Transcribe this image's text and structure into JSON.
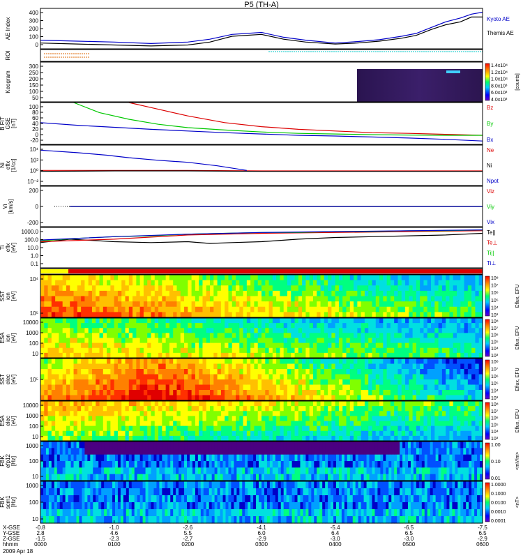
{
  "chart_data": {
    "type": "line",
    "title": "P5 (TH-A)",
    "date_label": "2009 Apr 18",
    "x_ticks": [
      {
        "x": "-0.8",
        "y": "2.8",
        "z": "-1.5",
        "t": "0000"
      },
      {
        "x": "-1.0",
        "y": "4.6",
        "z": "-2.3",
        "t": "0100"
      },
      {
        "x": "-2.6",
        "y": "5.5",
        "z": "-2.7",
        "t": "0200"
      },
      {
        "x": "-4.1",
        "y": "6.0",
        "z": "-2.9",
        "t": "0300"
      },
      {
        "x": "-5.4",
        "y": "6.4",
        "z": "-3.0",
        "t": "0400"
      },
      {
        "x": "-6.5",
        "y": "6.5",
        "z": "-3.0",
        "t": "0500"
      },
      {
        "x": "-7.5",
        "y": "6.5",
        "z": "-2.9",
        "t": "0600"
      }
    ],
    "x_row_labels": [
      "X-GSE",
      "Y-GSE",
      "Z-GSE",
      "hhmm"
    ],
    "panels": [
      {
        "kind": "line",
        "ylabel": [
          "AE Index"
        ],
        "yticks": [
          "0",
          "100",
          "200",
          "300",
          "400"
        ],
        "ylim": [
          0,
          420
        ],
        "series": [
          {
            "name": "Kyoto AE",
            "color": "#0000c8",
            "x": [
              0,
              0.5,
              1,
              1.5,
              2,
              2.3,
              2.6,
              3,
              3.3,
              3.6,
              4,
              4.3,
              4.6,
              4.9,
              5.1,
              5.3,
              5.5,
              5.7,
              5.85,
              6
            ],
            "y": [
              90,
              80,
              70,
              55,
              70,
              100,
              150,
              170,
              120,
              90,
              60,
              75,
              95,
              130,
              160,
              220,
              280,
              320,
              360,
              380
            ]
          },
          {
            "name": "Themis AE",
            "color": "#000000",
            "x": [
              0,
              0.5,
              1,
              1.5,
              2,
              2.3,
              2.6,
              3,
              3.3,
              3.6,
              4,
              4.3,
              4.6,
              4.9,
              5.1,
              5.3,
              5.5,
              5.7,
              5.85,
              6
            ],
            "y": [
              60,
              50,
              40,
              30,
              40,
              70,
              130,
              150,
              100,
              70,
              50,
              60,
              80,
              110,
              140,
              200,
              250,
              280,
              330,
              330
            ]
          }
        ]
      },
      {
        "kind": "roi",
        "ylabel": [
          "ROI"
        ],
        "yticks": []
      },
      {
        "kind": "image",
        "ylabel": [
          "Keogram"
        ],
        "yticks": [
          "50",
          "100",
          "150",
          "200",
          "250",
          "300"
        ],
        "colorbar": {
          "label": "[counts]",
          "ticks": [
            "4.0x10³",
            "6.0x10³",
            "8.0x10³",
            "1.0x10⁴",
            "1.2x10⁴",
            "1.4x10⁴"
          ]
        }
      },
      {
        "kind": "line",
        "ylabel": [
          "B FIT",
          "GSE",
          "[nT]"
        ],
        "yticks": [
          "-20",
          "0",
          "20",
          "40",
          "60",
          "80",
          "100"
        ],
        "ylim": [
          -25,
          100
        ],
        "series": [
          {
            "name": "Bz",
            "color": "#dc0000",
            "x": [
              1.2,
              1.5,
              2,
              2.5,
              3,
              3.5,
              4,
              4.5,
              5,
              5.5,
              6
            ],
            "y": [
              100,
              85,
              60,
              40,
              28,
              20,
              15,
              10,
              8,
              5,
              2
            ]
          },
          {
            "name": "By",
            "color": "#00c800",
            "x": [
              0.45,
              0.8,
              1.2,
              1.6,
              2,
              2.5,
              3,
              3.5,
              4,
              4.5,
              5,
              5.5,
              6
            ],
            "y": [
              100,
              70,
              50,
              35,
              25,
              18,
              12,
              8,
              6,
              4,
              3,
              2,
              2
            ]
          },
          {
            "name": "Bx",
            "color": "#0000c8",
            "x": [
              0,
              0.5,
              1,
              1.5,
              2,
              2.5,
              3,
              3.5,
              4,
              4.5,
              5,
              5.5,
              6
            ],
            "y": [
              40,
              32,
              26,
              20,
              15,
              10,
              6,
              2,
              0,
              -3,
              -6,
              -10,
              -15
            ]
          }
        ]
      },
      {
        "kind": "line",
        "ylabel": [
          "Ni",
          "eflx",
          "[1/cc]"
        ],
        "yticks": [
          "10⁻²",
          "10⁰",
          "10²",
          "10⁴"
        ],
        "ylim": [
          -3,
          5
        ],
        "log": true,
        "series": [
          {
            "name": "Ne",
            "color": "#dc0000",
            "x": [
              0,
              1,
              2,
              3,
              4,
              5,
              6
            ],
            "y": [
              0,
              0,
              0,
              -0.1,
              -0.1,
              -0.1,
              -0.1
            ]
          },
          {
            "name": "Ni",
            "color": "#000000",
            "x": [
              0,
              1,
              2,
              3,
              4,
              5,
              6
            ],
            "y": [
              -0.2,
              -0.1,
              -0.1,
              -0.2,
              -0.2,
              -0.2,
              -0.2
            ]
          },
          {
            "name": "Npot",
            "color": "#0000c8",
            "x": [
              0,
              0.5,
              0.9,
              1.2,
              1.6,
              2.0,
              2.4,
              2.8
            ],
            "y": [
              4,
              3.5,
              3,
              2.5,
              2,
              1.6,
              0.9,
              0
            ]
          }
        ]
      },
      {
        "kind": "line",
        "ylabel": [
          "Vi",
          "[km/s]"
        ],
        "yticks": [
          "-200",
          "0",
          "200"
        ],
        "ylim": [
          -250,
          250
        ],
        "series": [
          {
            "name": "Viz",
            "color": "#dc0000",
            "x": [
              0.4,
              6
            ],
            "y": [
              0,
              0
            ]
          },
          {
            "name": "Viy",
            "color": "#00c800",
            "x": [
              0.4,
              6
            ],
            "y": [
              0,
              0
            ]
          },
          {
            "name": "Vix",
            "color": "#0000c8",
            "x": [
              0.4,
              6
            ],
            "y": [
              0,
              0
            ]
          }
        ]
      },
      {
        "kind": "line",
        "ylabel": [
          "Ti",
          "eflx",
          "[eV]"
        ],
        "yticks": [
          "0.1",
          "1.0",
          "10.0",
          "100.0",
          "1000.0"
        ],
        "ylim": [
          -1.2,
          3.6
        ],
        "log": true,
        "series": [
          {
            "name": "Te||",
            "color": "#000000",
            "x": [
              0,
              0.4,
              1,
              1.5,
              2,
              2.3,
              2.6,
              3,
              3.5,
              4,
              4.5,
              5,
              5.5,
              6
            ],
            "y": [
              1.8,
              2.2,
              1.9,
              1.8,
              1.9,
              1.7,
              1.8,
              1.9,
              2.2,
              2.4,
              2.5,
              2.6,
              2.7,
              2.9
            ]
          },
          {
            "name": "Te⊥",
            "color": "#dc0000",
            "x": [
              0,
              1,
              2,
              3,
              4,
              5,
              6
            ],
            "y": [
              1.9,
              2.2,
              2.7,
              2.9,
              3.0,
              3.1,
              3.2
            ]
          },
          {
            "name": "Ti||",
            "color": "#00c800",
            "x": [
              0,
              0.5,
              1,
              1.5,
              2,
              2.5,
              3,
              3.5,
              4,
              4.5,
              5,
              5.5,
              6
            ],
            "y": [
              2.0,
              2.3,
              2.5,
              2.6,
              2.8,
              2.9,
              3.0,
              3.0,
              3.1,
              3.1,
              3.2,
              3.2,
              3.3
            ]
          },
          {
            "name": "Ti⊥",
            "color": "#0000c8",
            "x": [
              0,
              1,
              2,
              3,
              4,
              5,
              6
            ],
            "y": [
              2.1,
              2.5,
              2.8,
              3.0,
              3.1,
              3.2,
              3.3
            ]
          }
        ]
      },
      {
        "kind": "mode",
        "ylabel": [],
        "yticks": []
      },
      {
        "kind": "spec",
        "ylabel": [
          "SST",
          "ion",
          "[eV]"
        ],
        "yticks": [
          "10⁵",
          "10⁴"
        ],
        "colorbar": {
          "label": "Eflux, EFU",
          "ticks": [
            "10³",
            "10⁴",
            "10⁵",
            "10⁶",
            "10⁷",
            "10⁸"
          ]
        }
      },
      {
        "kind": "spec",
        "ylabel": [
          "ESA",
          "ion",
          "[eV]"
        ],
        "yticks": [
          "10",
          "100",
          "1000",
          "10000"
        ],
        "colorbar": {
          "label": "Eflux, EFU",
          "ticks": [
            "10³",
            "10⁴",
            "10⁵",
            "10⁶",
            "10⁷",
            "10⁸"
          ]
        }
      },
      {
        "kind": "spec",
        "ylabel": [
          "SST",
          "elec",
          "[eV]"
        ],
        "yticks": [
          "10⁵"
        ],
        "colorbar": {
          "label": "Eflux, EFU",
          "ticks": [
            "10³",
            "10⁴",
            "10⁵",
            "10⁶",
            "10⁷",
            "10⁸"
          ]
        }
      },
      {
        "kind": "spec",
        "ylabel": [
          "ESA",
          "elec",
          "[eV]"
        ],
        "yticks": [
          "10",
          "100",
          "1000",
          "10000"
        ],
        "colorbar": {
          "label": "Eflux, EFU",
          "ticks": [
            "10³",
            "10⁴",
            "10⁵",
            "10⁶",
            "10⁷",
            "10⁸"
          ]
        }
      },
      {
        "kind": "fbk",
        "ylabel": [
          "FBK",
          "efp12",
          "[Hz]"
        ],
        "yticks": [
          "10",
          "100",
          "1000"
        ],
        "colorbar": {
          "label": "<mV/m>",
          "ticks": [
            "0.01",
            "0.10",
            "1.00"
          ]
        }
      },
      {
        "kind": "fbk",
        "ylabel": [
          "FBK",
          "scm1",
          "[Hz]"
        ],
        "yticks": [
          "10",
          "100",
          "1000"
        ],
        "colorbar": {
          "label": "<nT>",
          "ticks": [
            "0.0001",
            "0.0010",
            "0.0100",
            "0.1000",
            "1.0000"
          ]
        }
      }
    ]
  }
}
